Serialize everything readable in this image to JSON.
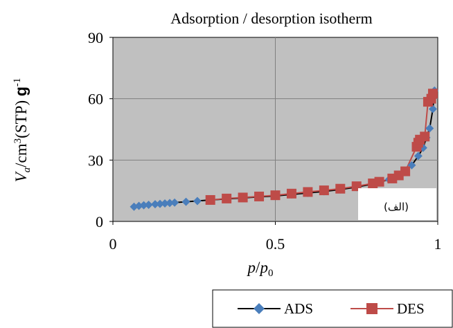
{
  "chart_data": {
    "type": "scatter",
    "title": "Adsorption / desorption isotherm",
    "xlabel_main": "p",
    "xlabel_sep": "/",
    "xlabel_main2": "p",
    "xlabel_sub": "0",
    "ylabel_v": "V",
    "ylabel_sub": "a",
    "ylabel_mid": "/cm",
    "ylabel_sup": "3",
    "ylabel_stp": "(STP) ",
    "ylabel_g": "g",
    "ylabel_g_sup": "-1",
    "xlim": [
      0,
      1
    ],
    "ylim": [
      0,
      90
    ],
    "xticks": [
      0,
      0.5,
      1
    ],
    "xtick_labels": [
      "0",
      "0.5",
      "1"
    ],
    "yticks": [
      0,
      30,
      60,
      90
    ],
    "ytick_labels": [
      "0",
      "30",
      "60",
      "90"
    ],
    "grid": true,
    "plot_background": "#c0c0c0",
    "inset_label": "(الف)",
    "legend_position": "bottom-right",
    "series": [
      {
        "name": "ADS",
        "color": "#4a7ebb",
        "marker": "diamond",
        "x": [
          0.065,
          0.08,
          0.095,
          0.11,
          0.13,
          0.145,
          0.16,
          0.175,
          0.19,
          0.225,
          0.26,
          0.3,
          0.35,
          0.4,
          0.45,
          0.5,
          0.55,
          0.6,
          0.65,
          0.7,
          0.75,
          0.8,
          0.85,
          0.88,
          0.9,
          0.92,
          0.94,
          0.955,
          0.965,
          0.975,
          0.985,
          0.99
        ],
        "y": [
          7.2,
          7.6,
          7.9,
          8.1,
          8.4,
          8.6,
          8.8,
          9.0,
          9.2,
          9.6,
          10.0,
          10.5,
          11.0,
          11.5,
          12.0,
          12.5,
          13.2,
          13.9,
          14.7,
          15.6,
          16.8,
          18.3,
          20.5,
          22.5,
          24.5,
          27.5,
          32.0,
          36.0,
          41.0,
          45.5,
          55.0,
          64.0
        ]
      },
      {
        "name": "DES",
        "color": "#be4b48",
        "marker": "square",
        "x": [
          0.3,
          0.35,
          0.4,
          0.45,
          0.5,
          0.55,
          0.6,
          0.65,
          0.7,
          0.75,
          0.8,
          0.82,
          0.86,
          0.88,
          0.9,
          0.935,
          0.94,
          0.945,
          0.96,
          0.97,
          0.98,
          0.985
        ],
        "y": [
          10.5,
          11.2,
          11.7,
          12.2,
          12.8,
          13.6,
          14.4,
          15.2,
          16.0,
          17.2,
          18.6,
          19.4,
          21.0,
          22.5,
          24.5,
          36.5,
          38.5,
          40.0,
          41.5,
          58.5,
          60.0,
          62.5
        ]
      }
    ]
  }
}
